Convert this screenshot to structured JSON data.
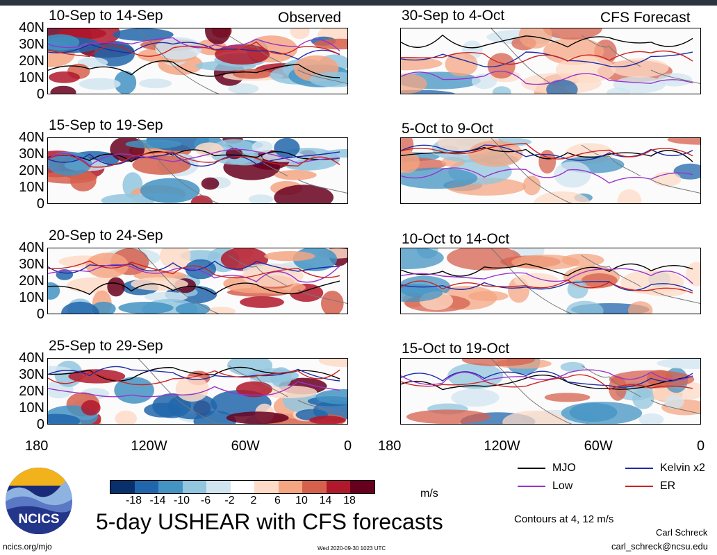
{
  "page": {
    "title": "5-day USHEAR with CFS forecasts",
    "observed_label": "Observed",
    "forecast_label": "CFS Forecast",
    "units": "m/s",
    "contours_note": "Contours at 4, 12 m/s",
    "author": "Carl Schreck",
    "email": "carl_schreck@ncsu.edu",
    "website": "ncics.org/mjo",
    "timestamp": "Wed 2020-09-30 1023 UTC",
    "logo_text": "NCICS"
  },
  "colors": {
    "mjo": "#000000",
    "kelvin": "#1e2aa8",
    "low": "#9933cc",
    "er": "#cc2222",
    "scale": [
      "#08306b",
      "#2166ac",
      "#4393c3",
      "#92c5de",
      "#d1e5f0",
      "#ffffff",
      "#fddbc7",
      "#f4a582",
      "#d6604d",
      "#b2182b",
      "#67001f"
    ]
  },
  "chart_data": {
    "type": "heatmap",
    "variable": "5-day USHEAR",
    "xlim": [
      "180",
      "0"
    ],
    "ylim": [
      "0",
      "40N"
    ],
    "x_ticks": [
      "180",
      "120W",
      "60W",
      "0"
    ],
    "y_ticks": [
      "40N",
      "30N",
      "20N",
      "10N",
      "0"
    ],
    "colorbar": {
      "ticks": [
        "-18",
        "-14",
        "-10",
        "-6",
        "-2",
        "2",
        "6",
        "10",
        "14",
        "18"
      ],
      "units": "m/s"
    },
    "contour_levels": "Contours at 4, 12 m/s",
    "legend": [
      {
        "name": "MJO",
        "color": "#000000"
      },
      {
        "name": "Kelvin x2",
        "color": "#1e2aa8"
      },
      {
        "name": "Low",
        "color": "#9933cc"
      },
      {
        "name": "ER",
        "color": "#cc2222"
      }
    ],
    "observed_panels": [
      {
        "period": "10-Sep to 14-Sep",
        "tag": "Observed"
      },
      {
        "period": "15-Sep to 19-Sep"
      },
      {
        "period": "20-Sep to 24-Sep"
      },
      {
        "period": "25-Sep to 29-Sep"
      }
    ],
    "forecast_panels": [
      {
        "period": "30-Sep to 4-Oct",
        "tag": "CFS Forecast"
      },
      {
        "period": "5-Oct to 9-Oct"
      },
      {
        "period": "10-Oct to 14-Oct"
      },
      {
        "period": "15-Oct to 19-Oct"
      }
    ]
  }
}
